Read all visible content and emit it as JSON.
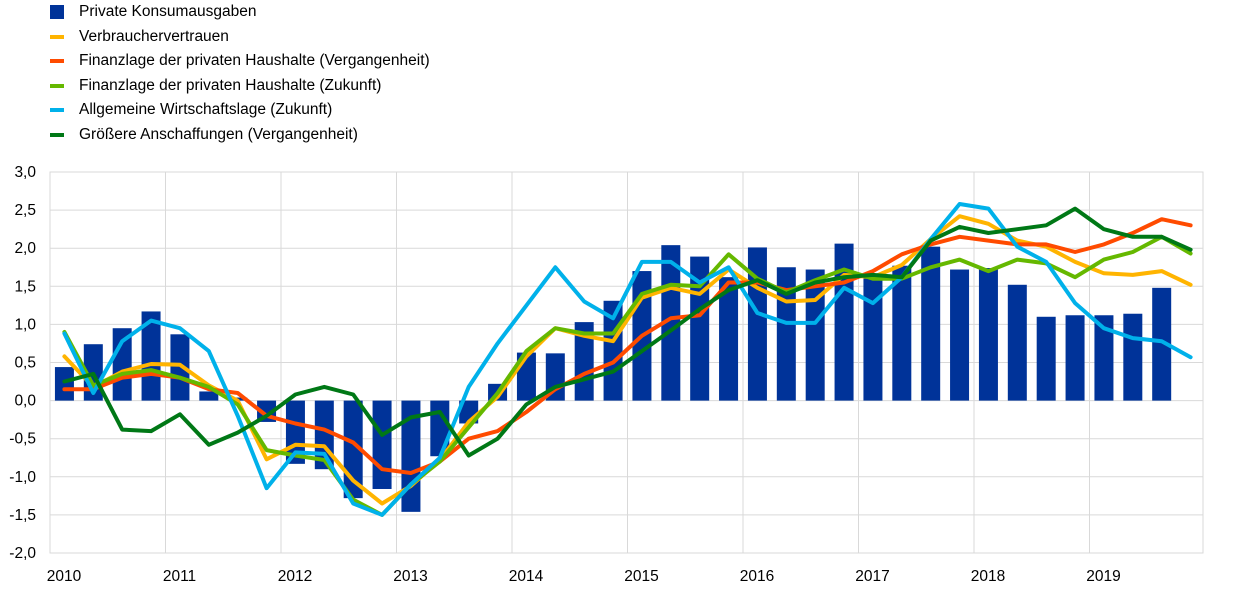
{
  "chart_data": {
    "type": "bar",
    "xlabel": "",
    "ylabel": "",
    "ylim": [
      -2.0,
      3.0
    ],
    "yticks": [
      "3,0",
      "2,5",
      "2,0",
      "1,5",
      "1,0",
      "0,5",
      "0,0",
      "-0,5",
      "-1,0",
      "-1,5",
      "-2,0"
    ],
    "ytick_values": [
      3.0,
      2.5,
      2.0,
      1.5,
      1.0,
      0.5,
      0.0,
      -0.5,
      -1.0,
      -1.5,
      -2.0
    ],
    "xticks": [
      "2010",
      "2011",
      "2012",
      "2013",
      "2014",
      "2015",
      "2016",
      "2017",
      "2018",
      "2019"
    ],
    "grid": true,
    "legend_position": "top-left",
    "bar_series": {
      "name": "Private Konsumausgaben",
      "color": "#003399",
      "values": [
        0.44,
        0.74,
        0.95,
        1.17,
        0.87,
        0.12,
        0.04,
        -0.28,
        -0.83,
        -0.9,
        -1.28,
        -1.16,
        -1.46,
        -0.73,
        -0.3,
        0.22,
        0.63,
        0.62,
        1.03,
        1.31,
        1.7,
        2.04,
        1.89,
        1.62,
        2.01,
        1.75,
        1.72,
        2.06,
        1.62,
        1.77,
        2.02,
        1.72,
        1.74,
        1.52,
        1.1,
        1.12,
        1.12,
        1.14,
        1.48
      ]
    },
    "line_series": [
      {
        "name": "Verbrauchervertrauen",
        "color": "#FFB400",
        "values": [
          0.58,
          0.18,
          0.38,
          0.48,
          0.47,
          0.2,
          0.0,
          -0.77,
          -0.58,
          -0.6,
          -1.05,
          -1.35,
          -1.12,
          -0.78,
          -0.28,
          0.05,
          0.58,
          0.95,
          0.85,
          0.78,
          1.35,
          1.48,
          1.4,
          1.72,
          1.48,
          1.3,
          1.32,
          1.65,
          1.62,
          1.78,
          2.12,
          2.42,
          2.32,
          2.1,
          2.02,
          1.82,
          1.67,
          1.65,
          1.7,
          1.52
        ]
      },
      {
        "name": "Finanzlage der privaten Haushalte (Vergangenheit)",
        "color": "#FF4B00",
        "values": [
          0.15,
          0.15,
          0.3,
          0.35,
          0.3,
          0.15,
          0.1,
          -0.2,
          -0.3,
          -0.38,
          -0.55,
          -0.9,
          -0.95,
          -0.8,
          -0.5,
          -0.4,
          -0.15,
          0.15,
          0.35,
          0.5,
          0.85,
          1.08,
          1.12,
          1.55,
          1.55,
          1.45,
          1.5,
          1.55,
          1.7,
          1.92,
          2.05,
          2.15,
          2.1,
          2.05,
          2.05,
          1.95,
          2.05,
          2.2,
          2.38,
          2.3
        ]
      },
      {
        "name": "Finanzlage der privaten Haushalte (Zukunft)",
        "color": "#65B800",
        "values": [
          0.9,
          0.2,
          0.35,
          0.4,
          0.3,
          0.18,
          -0.05,
          -0.65,
          -0.72,
          -0.78,
          -1.3,
          -1.5,
          -1.1,
          -0.8,
          -0.35,
          0.1,
          0.65,
          0.95,
          0.88,
          0.88,
          1.4,
          1.52,
          1.5,
          1.92,
          1.6,
          1.42,
          1.58,
          1.72,
          1.6,
          1.6,
          1.75,
          1.85,
          1.7,
          1.85,
          1.8,
          1.62,
          1.85,
          1.95,
          2.15,
          1.93
        ]
      },
      {
        "name": "Allgemeine Wirtschaftslage (Zukunft)",
        "color": "#00B1EA",
        "values": [
          0.88,
          0.1,
          0.78,
          1.05,
          0.95,
          0.65,
          -0.2,
          -1.15,
          -0.68,
          -0.7,
          -1.35,
          -1.5,
          -1.1,
          -0.75,
          0.18,
          0.75,
          1.25,
          1.75,
          1.3,
          1.08,
          1.82,
          1.82,
          1.55,
          1.75,
          1.15,
          1.02,
          1.02,
          1.48,
          1.28,
          1.62,
          2.12,
          2.58,
          2.52,
          2.02,
          1.82,
          1.28,
          0.95,
          0.82,
          0.78,
          0.57
        ]
      },
      {
        "name": "Größere Anschaffungen (Vergangenheit)",
        "color": "#007816",
        "values": [
          0.25,
          0.35,
          -0.38,
          -0.4,
          -0.18,
          -0.58,
          -0.42,
          -0.2,
          0.08,
          0.18,
          0.08,
          -0.45,
          -0.22,
          -0.15,
          -0.72,
          -0.5,
          -0.05,
          0.18,
          0.28,
          0.38,
          0.65,
          0.92,
          1.2,
          1.45,
          1.58,
          1.4,
          1.55,
          1.62,
          1.65,
          1.62,
          2.1,
          2.28,
          2.2,
          2.25,
          2.3,
          2.52,
          2.25,
          2.15,
          2.15,
          1.98
        ]
      }
    ]
  }
}
